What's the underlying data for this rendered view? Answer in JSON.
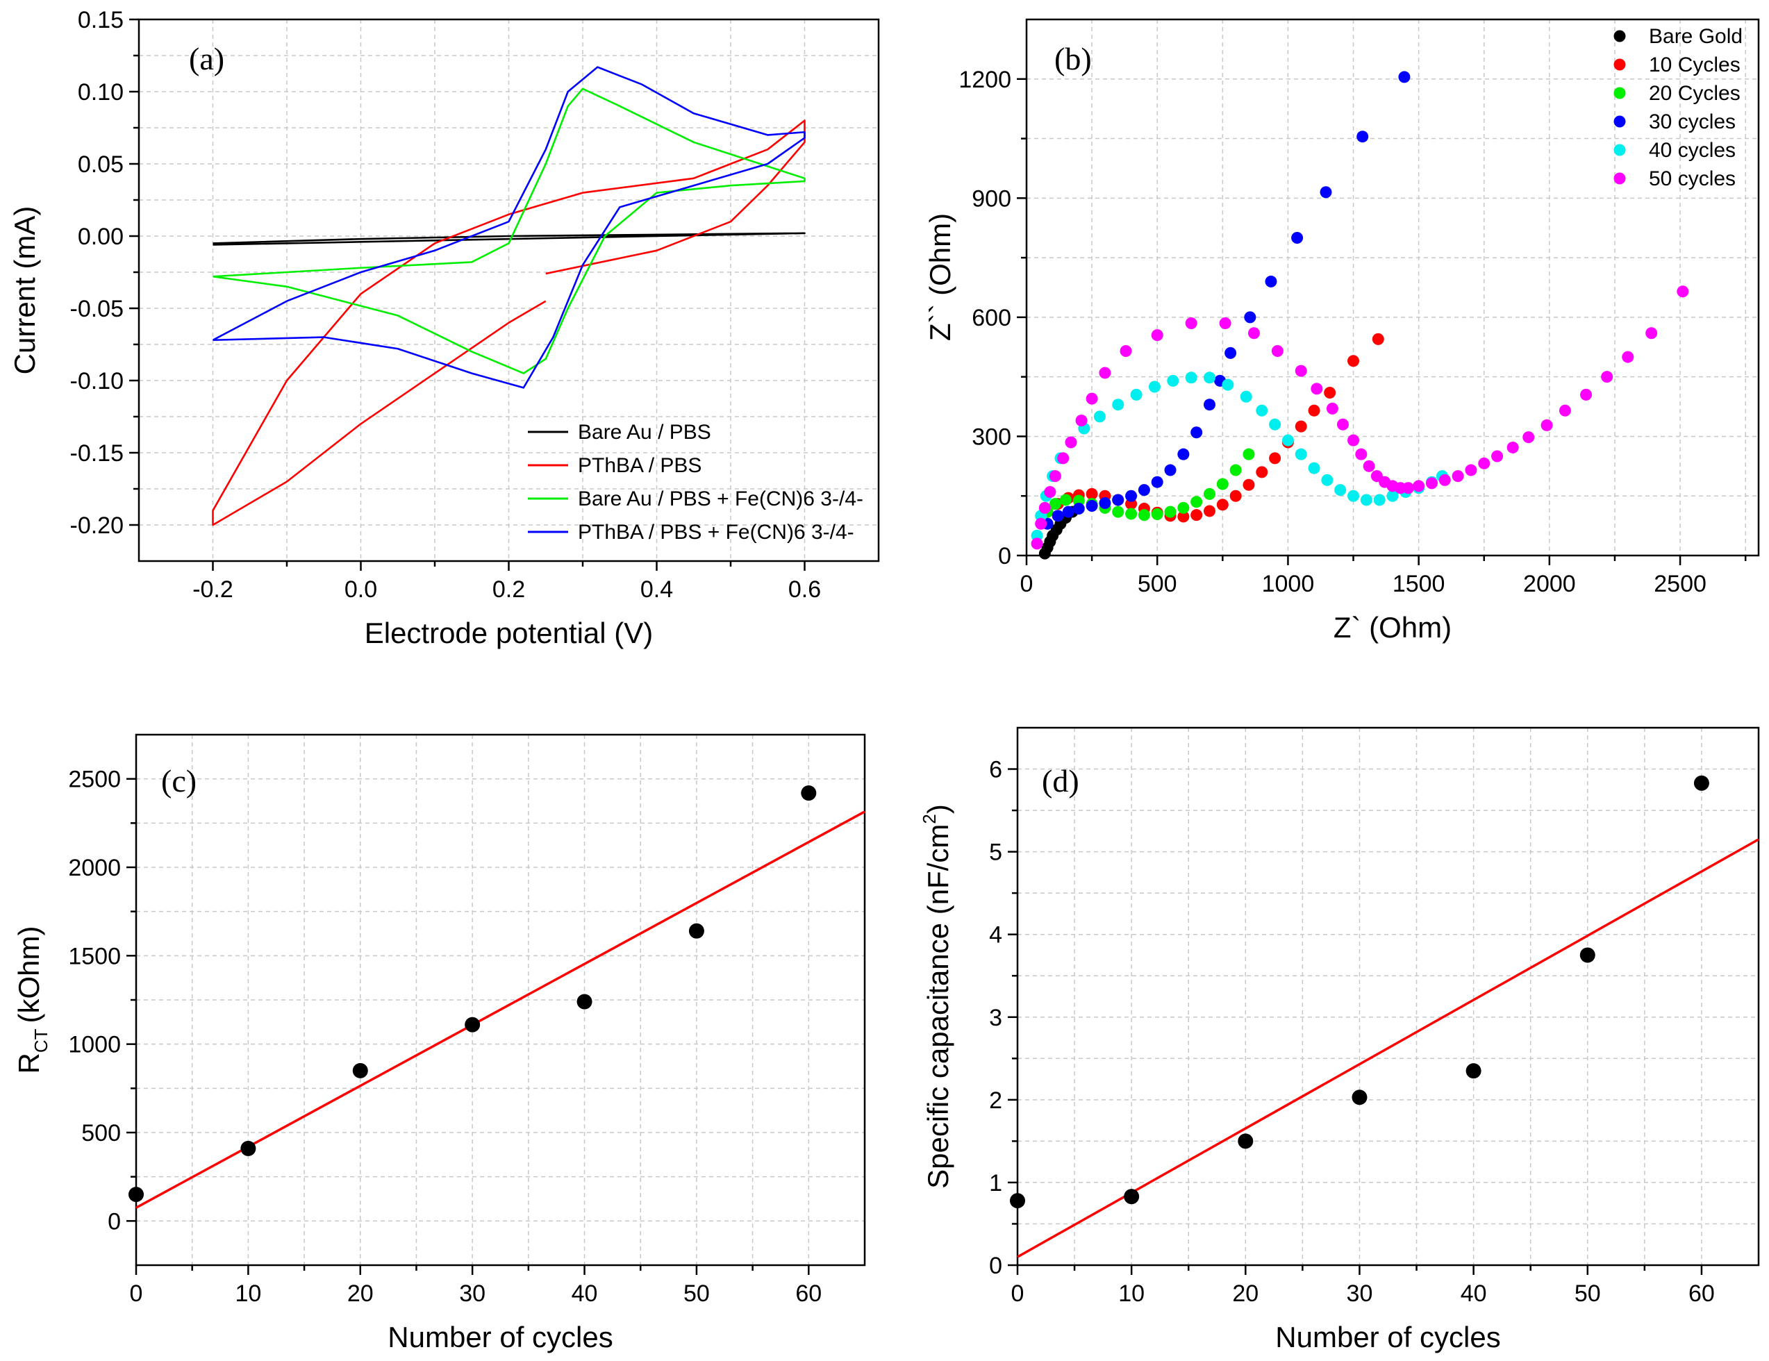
{
  "chart_data": [
    {
      "id": "a",
      "panel_label": "(a)",
      "type": "line",
      "title": "",
      "xlabel": "Electrode potential (V)",
      "ylabel": "Current (mA)",
      "xlim": [
        -0.3,
        0.7
      ],
      "ylim": [
        -0.225,
        0.15
      ],
      "xticks": [
        -0.2,
        0.0,
        0.2,
        0.4,
        0.6
      ],
      "xtick_labels": [
        "-0.2",
        "0.0",
        "0.2",
        "0.4",
        "0.6"
      ],
      "yticks": [
        -0.2,
        -0.15,
        -0.1,
        -0.05,
        0.0,
        0.05,
        0.1,
        0.15
      ],
      "ytick_labels": [
        "-0.20",
        "-0.15",
        "-0.10",
        "-0.05",
        "0.00",
        "0.05",
        "0.10",
        "0.15"
      ],
      "grid": true,
      "legend_position": "bottom-right",
      "series": [
        {
          "name": "Bare Au / PBS",
          "color": "#000000",
          "x": [
            -0.2,
            0.0,
            0.2,
            0.4,
            0.6,
            0.4,
            0.2,
            0.0,
            -0.2
          ],
          "y": [
            -0.005,
            -0.002,
            0.0,
            0.001,
            0.002,
            0.0,
            -0.002,
            -0.004,
            -0.006
          ]
        },
        {
          "name": "PThBA / PBS",
          "color": "#ff0000",
          "x": [
            0.25,
            0.4,
            0.5,
            0.55,
            0.6,
            0.6,
            0.55,
            0.45,
            0.3,
            0.2,
            0.1,
            0.0,
            -0.1,
            -0.2,
            -0.2,
            -0.1,
            0.0,
            0.1,
            0.2,
            0.25
          ],
          "y": [
            -0.026,
            -0.01,
            0.01,
            0.035,
            0.065,
            0.08,
            0.06,
            0.04,
            0.03,
            0.015,
            -0.005,
            -0.04,
            -0.1,
            -0.19,
            -0.2,
            -0.17,
            -0.13,
            -0.095,
            -0.06,
            -0.045
          ]
        },
        {
          "name": "Bare Au / PBS + Fe(CN)6 3-/4-",
          "color": "#00ee00",
          "x": [
            -0.2,
            0.0,
            0.15,
            0.2,
            0.25,
            0.28,
            0.3,
            0.35,
            0.45,
            0.6,
            0.6,
            0.5,
            0.4,
            0.33,
            0.28,
            0.25,
            0.22,
            0.15,
            0.05,
            -0.1,
            -0.2
          ],
          "y": [
            -0.028,
            -0.022,
            -0.018,
            -0.005,
            0.05,
            0.09,
            0.102,
            0.09,
            0.065,
            0.04,
            0.038,
            0.035,
            0.03,
            0.0,
            -0.05,
            -0.085,
            -0.095,
            -0.08,
            -0.055,
            -0.035,
            -0.028
          ]
        },
        {
          "name": "PThBA / PBS + Fe(CN)6 3-/4-",
          "color": "#0000ff",
          "x": [
            -0.2,
            -0.1,
            0.0,
            0.1,
            0.2,
            0.25,
            0.28,
            0.32,
            0.38,
            0.45,
            0.55,
            0.6,
            0.6,
            0.55,
            0.45,
            0.35,
            0.3,
            0.26,
            0.22,
            0.15,
            0.05,
            -0.05,
            -0.2
          ],
          "y": [
            -0.072,
            -0.045,
            -0.025,
            -0.01,
            0.01,
            0.06,
            0.1,
            0.117,
            0.105,
            0.085,
            0.07,
            0.072,
            0.068,
            0.05,
            0.035,
            0.02,
            -0.02,
            -0.07,
            -0.105,
            -0.095,
            -0.078,
            -0.07,
            -0.072
          ]
        }
      ]
    },
    {
      "id": "b",
      "panel_label": "(b)",
      "type": "scatter",
      "title": "",
      "xlabel": "Z` (Ohm)",
      "ylabel": "Z`` (Ohm)",
      "xlim": [
        0,
        2800
      ],
      "ylim": [
        0,
        1350
      ],
      "xticks": [
        0,
        500,
        1000,
        1500,
        2000,
        2500
      ],
      "xtick_labels": [
        "0",
        "500",
        "1000",
        "1500",
        "2000",
        "2500"
      ],
      "yticks": [
        0,
        300,
        600,
        900,
        1200
      ],
      "ytick_labels": [
        "0",
        "300",
        "600",
        "900",
        "1200"
      ],
      "grid": true,
      "legend_position": "top-right",
      "series": [
        {
          "name": "Bare Gold",
          "color": "#000000",
          "x": [
            70,
            80,
            90,
            100,
            115,
            130,
            150,
            175
          ],
          "y": [
            5,
            20,
            35,
            50,
            65,
            80,
            95,
            110
          ]
        },
        {
          "name": "10 Cycles",
          "color": "#ff0000",
          "x": [
            120,
            160,
            200,
            250,
            300,
            350,
            400,
            450,
            500,
            550,
            600,
            650,
            700,
            750,
            800,
            850,
            900,
            950,
            1000,
            1050,
            1100,
            1160,
            1250,
            1345
          ],
          "y": [
            130,
            145,
            152,
            155,
            150,
            140,
            130,
            118,
            108,
            100,
            98,
            102,
            112,
            128,
            150,
            178,
            210,
            245,
            285,
            325,
            365,
            410,
            490,
            545
          ]
        },
        {
          "name": "20 Cycles",
          "color": "#00ee00",
          "x": [
            80,
            110,
            150,
            200,
            250,
            300,
            350,
            400,
            450,
            500,
            550,
            600,
            650,
            700,
            750,
            800,
            850
          ],
          "y": [
            110,
            130,
            140,
            138,
            130,
            120,
            110,
            105,
            102,
            104,
            110,
            120,
            135,
            155,
            180,
            215,
            255
          ]
        },
        {
          "name": "30 cycles",
          "color": "#0000ff",
          "x": [
            80,
            120,
            160,
            200,
            250,
            300,
            350,
            400,
            450,
            500,
            550,
            600,
            650,
            700,
            740,
            780,
            855,
            935,
            1035,
            1145,
            1285,
            1445
          ],
          "y": [
            80,
            100,
            110,
            118,
            125,
            132,
            140,
            150,
            165,
            185,
            215,
            255,
            310,
            380,
            440,
            510,
            600,
            690,
            800,
            915,
            1055,
            1205
          ]
        },
        {
          "name": "40 cycles",
          "color": "#00eeee",
          "x": [
            40,
            55,
            75,
            100,
            130,
            170,
            220,
            280,
            350,
            420,
            490,
            560,
            630,
            700,
            770,
            840,
            900,
            950,
            1000,
            1050,
            1100,
            1150,
            1200,
            1250,
            1300,
            1350,
            1400,
            1450,
            1500,
            1550,
            1590
          ],
          "y": [
            50,
            100,
            150,
            200,
            245,
            285,
            320,
            350,
            380,
            405,
            425,
            440,
            448,
            448,
            430,
            400,
            365,
            330,
            290,
            255,
            220,
            190,
            165,
            150,
            140,
            140,
            150,
            160,
            170,
            185,
            200
          ]
        },
        {
          "name": "50 cycles",
          "color": "#ff00ff",
          "x": [
            40,
            55,
            70,
            90,
            110,
            140,
            170,
            210,
            250,
            300,
            380,
            500,
            630,
            760,
            870,
            960,
            1050,
            1110,
            1170,
            1210,
            1250,
            1280,
            1310,
            1340,
            1370,
            1400,
            1430,
            1460,
            1500,
            1550,
            1600,
            1650,
            1700,
            1750,
            1800,
            1860,
            1920,
            1990,
            2060,
            2140,
            2220,
            2300,
            2390,
            2510
          ],
          "y": [
            30,
            80,
            120,
            160,
            200,
            245,
            285,
            340,
            395,
            460,
            515,
            555,
            585,
            585,
            560,
            515,
            465,
            420,
            370,
            330,
            290,
            255,
            225,
            200,
            185,
            175,
            170,
            170,
            175,
            182,
            190,
            200,
            215,
            232,
            250,
            272,
            298,
            328,
            365,
            405,
            450,
            500,
            560,
            665
          ]
        }
      ]
    },
    {
      "id": "c",
      "panel_label": "(c)",
      "type": "scatter",
      "title": "",
      "xlabel": "Number of cycles",
      "ylabel_main": "R",
      "ylabel_sub": "CT",
      "ylabel_rest": "(kOhm)",
      "xlim": [
        0,
        65
      ],
      "ylim": [
        -250,
        2750
      ],
      "xticks": [
        0,
        10,
        20,
        30,
        40,
        50,
        60
      ],
      "xtick_labels": [
        "0",
        "10",
        "20",
        "30",
        "40",
        "50",
        "60"
      ],
      "yticks": [
        0,
        500,
        1000,
        1500,
        2000,
        2500
      ],
      "ytick_labels": [
        "0",
        "500",
        "1000",
        "1500",
        "2000",
        "2500"
      ],
      "grid": true,
      "series": [
        {
          "name": "R_CT",
          "color": "#000000",
          "x": [
            0,
            10,
            20,
            30,
            40,
            50,
            60
          ],
          "y": [
            150,
            410,
            850,
            1110,
            1240,
            1640,
            2420
          ]
        }
      ],
      "fit": {
        "color": "#ff0000",
        "x": [
          0,
          65
        ],
        "y": [
          75,
          2315
        ]
      }
    },
    {
      "id": "d",
      "panel_label": "(d)",
      "type": "scatter",
      "title": "",
      "xlabel": "Number of cycles",
      "ylabel_main": "Specific capacitance (nF/cm",
      "ylabel_sup": "2",
      "ylabel_rest": ")",
      "xlim": [
        0,
        65
      ],
      "ylim": [
        0,
        6.5
      ],
      "xticks": [
        0,
        10,
        20,
        30,
        40,
        50,
        60
      ],
      "xtick_labels": [
        "0",
        "10",
        "20",
        "30",
        "40",
        "50",
        "60"
      ],
      "yticks": [
        0,
        1,
        2,
        3,
        4,
        5,
        6
      ],
      "ytick_labels": [
        "0",
        "1",
        "2",
        "3",
        "4",
        "5",
        "6"
      ],
      "grid": true,
      "series": [
        {
          "name": "Specific capacitance",
          "color": "#000000",
          "x": [
            0,
            10,
            20,
            30,
            40,
            50,
            60
          ],
          "y": [
            0.78,
            0.83,
            1.5,
            2.03,
            2.35,
            3.75,
            5.83
          ]
        }
      ],
      "fit": {
        "color": "#ff0000",
        "x": [
          0,
          65
        ],
        "y": [
          0.1,
          5.15
        ]
      }
    }
  ]
}
